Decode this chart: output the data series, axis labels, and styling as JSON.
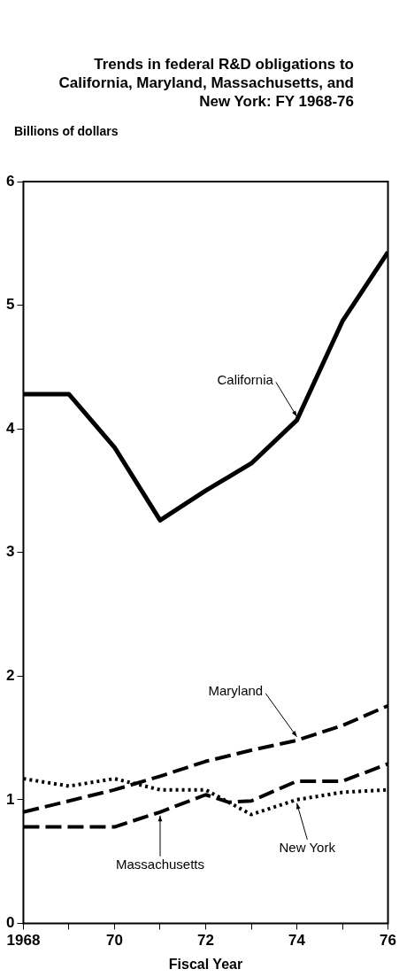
{
  "chart_data": {
    "type": "line",
    "title": "Trends in federal R&D obligations to California, Maryland, Massachusetts, and New York: FY 1968-76",
    "ylabel": "Billions of dollars",
    "xlabel": "Fiscal Year",
    "xlim": [
      1968,
      1976
    ],
    "xticks": [
      {
        "value": 1968,
        "label": "1968"
      },
      {
        "value": 1969,
        "label": null
      },
      {
        "value": 1970,
        "label": "70"
      },
      {
        "value": 1971,
        "label": null
      },
      {
        "value": 1972,
        "label": "72"
      },
      {
        "value": 1973,
        "label": null
      },
      {
        "value": 1974,
        "label": "74"
      },
      {
        "value": 1975,
        "label": null
      },
      {
        "value": 1976,
        "label": "76"
      }
    ],
    "ylim": [
      0,
      6
    ],
    "yticks": [
      0,
      1,
      2,
      3,
      4,
      5,
      6
    ],
    "legend": false,
    "marker": "none",
    "series": [
      {
        "name": "California",
        "color": "#000000",
        "line_style": "solid",
        "x": [
          1968,
          1969,
          1970,
          1971,
          1972,
          1973,
          1974,
          1975,
          1976
        ],
        "values": [
          4.28,
          4.28,
          3.85,
          3.26,
          3.5,
          3.72,
          4.07,
          4.87,
          5.43
        ]
      },
      {
        "name": "Maryland",
        "color": "#000000",
        "line_style": "dashed",
        "x": [
          1968,
          1969,
          1970,
          1971,
          1972,
          1973,
          1974,
          1975,
          1976
        ],
        "values": [
          0.9,
          0.99,
          1.08,
          1.19,
          1.31,
          1.4,
          1.48,
          1.6,
          1.76
        ]
      },
      {
        "name": "Massachusetts",
        "color": "#000000",
        "line_style": "dashed",
        "x": [
          1968,
          1969,
          1970,
          1971,
          1972,
          1972.5,
          1973,
          1974,
          1975,
          1976
        ],
        "values": [
          0.78,
          0.78,
          0.78,
          0.9,
          1.04,
          0.98,
          0.99,
          1.15,
          1.15,
          1.29
        ]
      },
      {
        "name": "New York",
        "color": "#000000",
        "line_style": "dotted",
        "x": [
          1968,
          1969,
          1970,
          1971,
          1972,
          1973,
          1974,
          1975,
          1976
        ],
        "values": [
          1.17,
          1.11,
          1.17,
          1.08,
          1.08,
          0.88,
          1.0,
          1.06,
          1.08
        ]
      }
    ]
  }
}
